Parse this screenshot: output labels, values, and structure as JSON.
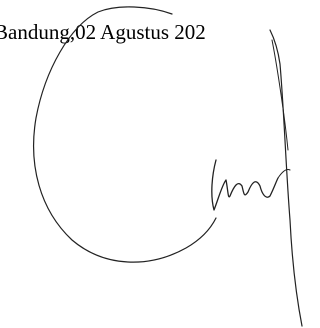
{
  "document": {
    "place_date": "Bandung,02 Agustus 202"
  }
}
